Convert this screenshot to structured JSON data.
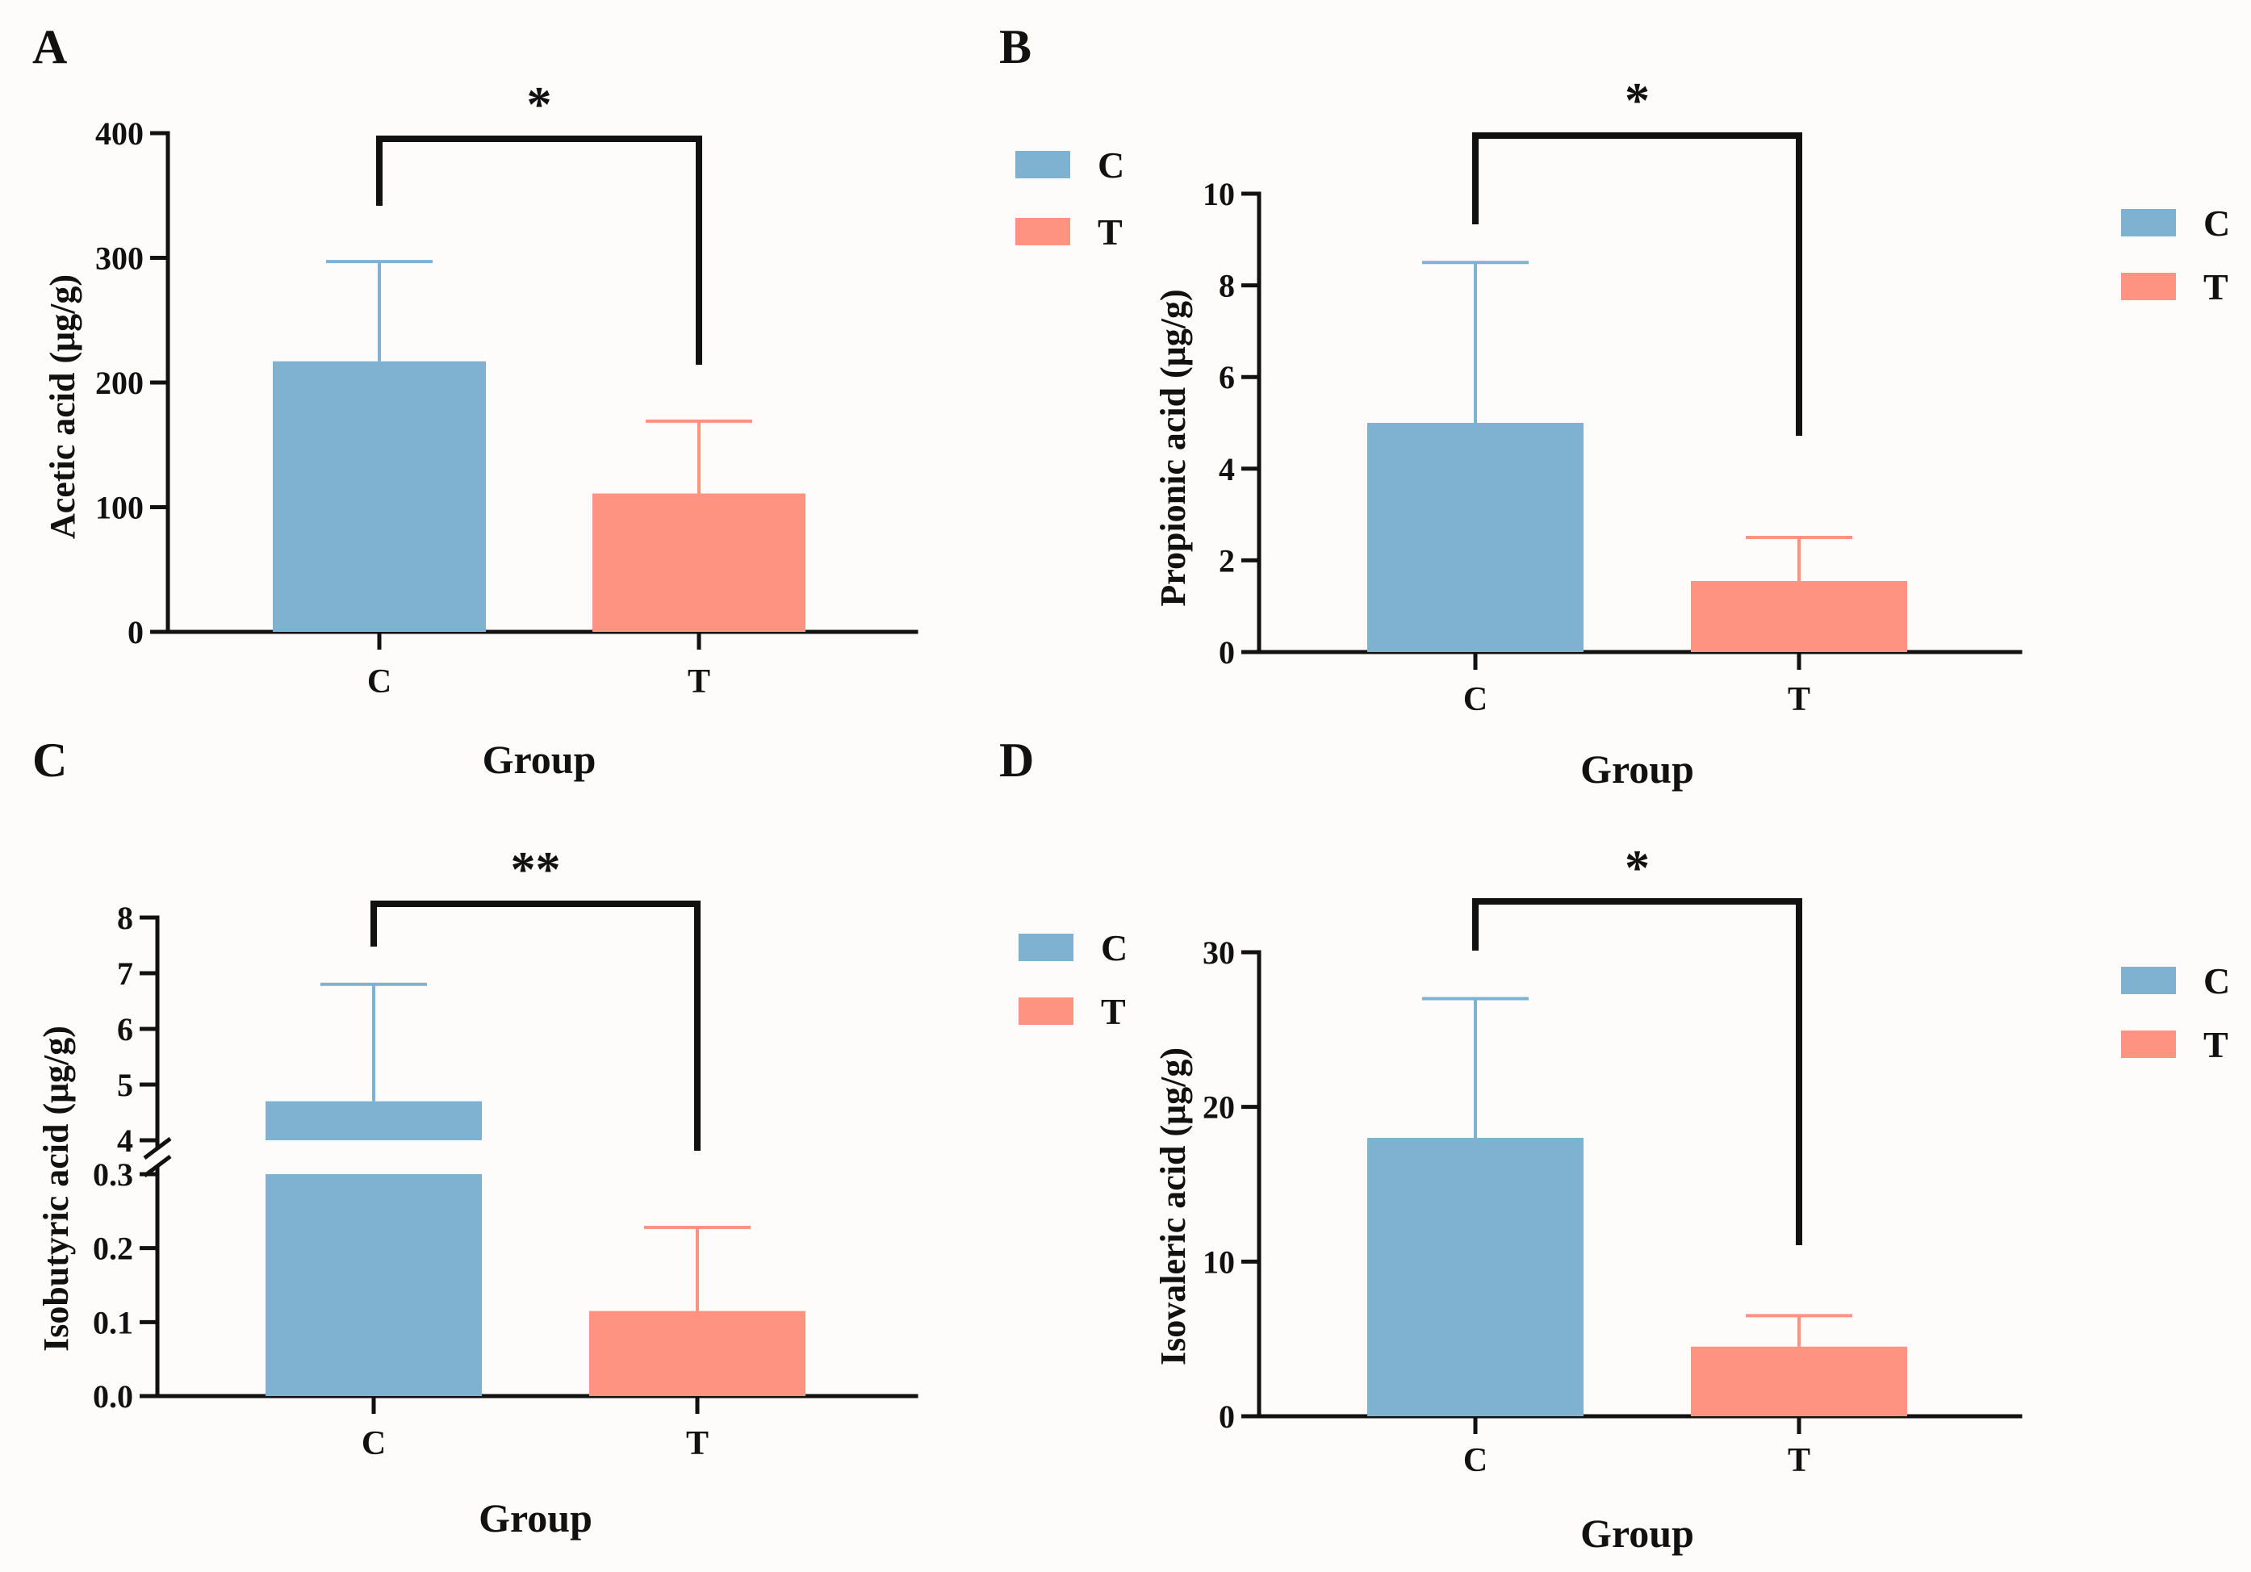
{
  "colors": {
    "C": "#7fb2d1",
    "T": "#fe9381"
  },
  "legend": [
    {
      "key": "C",
      "label": "C"
    },
    {
      "key": "T",
      "label": "T"
    }
  ],
  "chart_data": [
    {
      "panel": "A",
      "type": "bar",
      "categories": [
        "C",
        "T"
      ],
      "values": [
        217,
        111
      ],
      "error_upper": [
        297,
        169
      ],
      "xlabel": "Group",
      "ylabel": "Acetic acid (μg/g)",
      "ylim": [
        0,
        400
      ],
      "yticks": [
        0,
        100,
        200,
        300,
        400
      ],
      "significance": "*",
      "legend_position": "right"
    },
    {
      "panel": "B",
      "type": "bar",
      "categories": [
        "C",
        "T"
      ],
      "values": [
        5.0,
        1.55
      ],
      "error_upper": [
        8.5,
        2.5
      ],
      "xlabel": "Group",
      "ylabel": "Propionic acid (μg/g)",
      "ylim": [
        0,
        10
      ],
      "yticks": [
        0,
        2,
        4,
        6,
        8,
        10
      ],
      "significance": "*",
      "legend_position": "right"
    },
    {
      "panel": "C",
      "type": "bar",
      "broken_axis": true,
      "categories": [
        "C",
        "T"
      ],
      "values": [
        4.7,
        0.115
      ],
      "error_upper": [
        6.8,
        0.228
      ],
      "xlabel": "Group",
      "ylabel": "Isobutyric acid (μg/g)",
      "lower_range": [
        0,
        0.3
      ],
      "lower_ticks": [
        "0.0",
        "0.1",
        "0.2",
        "0.3"
      ],
      "upper_range": [
        4,
        8
      ],
      "upper_ticks": [
        "4",
        "5",
        "6",
        "7",
        "8"
      ],
      "significance": "**",
      "legend_position": "right"
    },
    {
      "panel": "D",
      "type": "bar",
      "categories": [
        "C",
        "T"
      ],
      "values": [
        18,
        4.5
      ],
      "error_upper": [
        27,
        6.5
      ],
      "xlabel": "Group",
      "ylabel": "Isovaleric acid (μg/g)",
      "ylim": [
        0,
        30
      ],
      "yticks": [
        0,
        10,
        20,
        30
      ],
      "significance": "*",
      "legend_position": "right"
    }
  ]
}
